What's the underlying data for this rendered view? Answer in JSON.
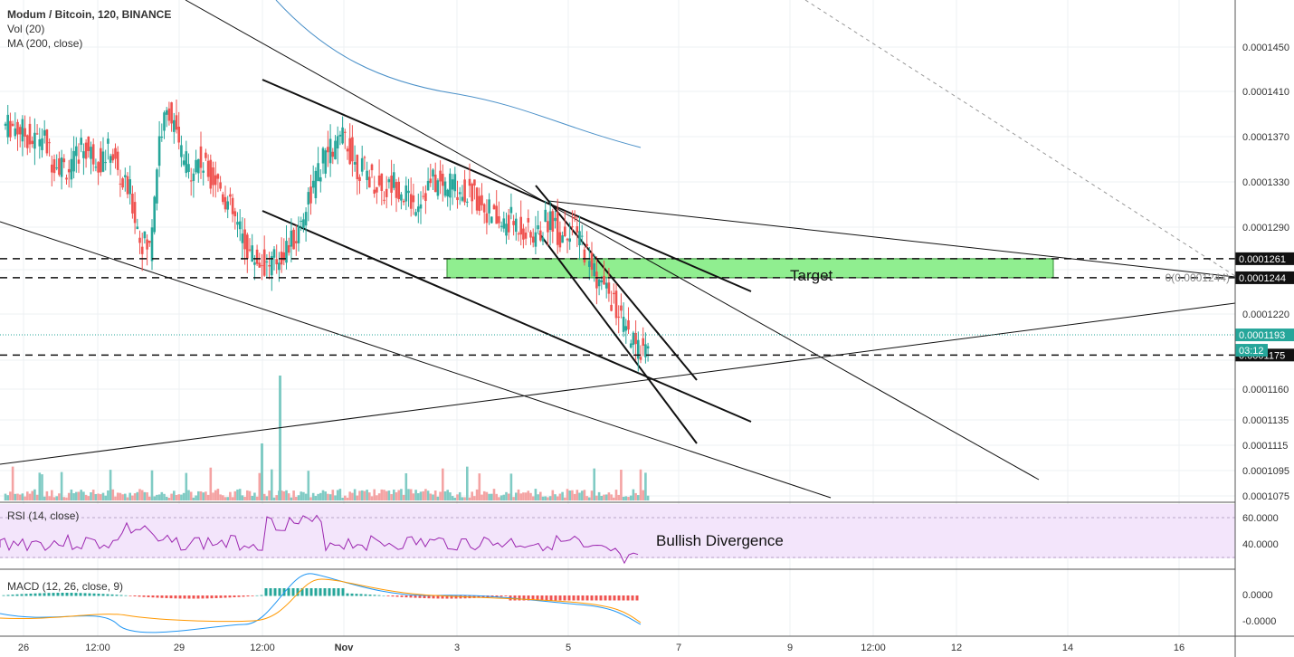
{
  "header": {
    "title": "Modum / Bitcoin, 120, BINANCE",
    "indicators": [
      "Vol (20)",
      "MA (200, close)"
    ]
  },
  "rsi": {
    "label": "RSI (14, close)",
    "annotation": "Bullish Divergence",
    "ticks": [
      "60.0000",
      "40.0000"
    ]
  },
  "macd": {
    "label": "MACD (12, 26, close, 9)",
    "ticks": [
      "0.0000",
      "-0.0000"
    ]
  },
  "annotations": {
    "target_label": "Target",
    "fib_label": "0(0.0001244)",
    "countdown": "03:12"
  },
  "colors": {
    "up": "#26a69a",
    "down": "#ef5350",
    "ma": "#4a90c8",
    "target_fill": "#90ee90",
    "rsi_bg": "#f3e5fb",
    "last_price": "#26a69a"
  },
  "chart_data": {
    "type": "candlestick",
    "title": "Modum / Bitcoin, 120, BINANCE",
    "y_axis_ticks": [
      "0.0001450",
      "0.0001410",
      "0.0001370",
      "0.0001330",
      "0.0001290",
      "0.0001220",
      "0.0001160",
      "0.0001135",
      "0.0001115",
      "0.0001095",
      "0.0001075"
    ],
    "x_axis_ticks": [
      "26",
      "12:00",
      "29",
      "12:00",
      "Nov",
      "3",
      "5",
      "7",
      "9",
      "12:00",
      "12",
      "14",
      "16"
    ],
    "price_levels": [
      {
        "label": "0.0001261",
        "value": 0.0001261,
        "style": "dashed"
      },
      {
        "label": "0.0001244",
        "value": 0.0001244,
        "style": "dashed"
      },
      {
        "label": "0.0001175",
        "value": 0.0001175,
        "style": "dashed"
      }
    ],
    "last_price": {
      "label": "0.0001193",
      "value": 0.0001193
    },
    "target_zone": [
      0.0001244,
      0.0001261
    ],
    "close_approx": [
      0.000138,
      0.0001375,
      0.0001365,
      0.0001372,
      0.000135,
      0.0001345,
      0.000134,
      0.0001362,
      0.0001355,
      0.0001348,
      0.000136,
      0.000133,
      0.000132,
      0.000128,
      0.000127,
      0.000137,
      0.0001395,
      0.000136,
      0.000134,
      0.000135,
      0.0001338,
      0.000133,
      0.000131,
      0.000129,
      0.000127,
      0.000126,
      0.0001255,
      0.000126,
      0.000127,
      0.000128,
      0.000131,
      0.000133,
      0.0001355,
      0.000136,
      0.000137,
      0.0001345,
      0.000134,
      0.000133,
      0.000132,
      0.000133,
      0.000132,
      0.000131,
      0.000132,
      0.000133,
      0.0001325,
      0.000133,
      0.000132,
      0.000132,
      0.000131,
      0.00013,
      0.000129,
      0.0001295,
      0.000129,
      0.000128,
      0.0001285,
      0.00013,
      0.000128,
      0.000129,
      0.000128,
      0.000126,
      0.000124,
      0.000123,
      0.000121,
      0.000119,
      0.0001178,
      0.0001193
    ]
  }
}
